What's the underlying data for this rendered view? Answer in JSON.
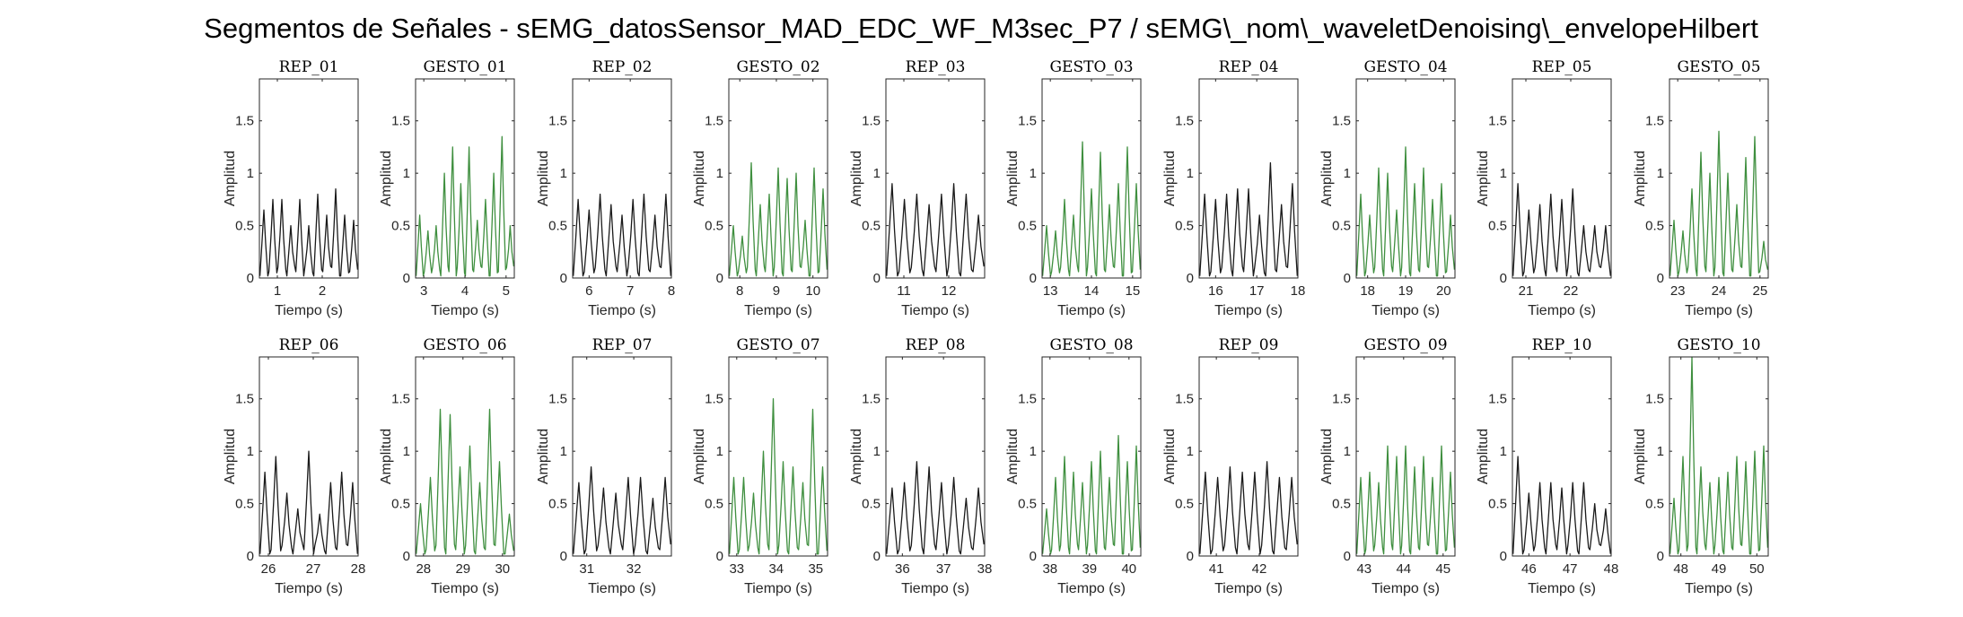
{
  "figure_title": "Segmentos de Señales - sEMG_datosSensor_MAD_EDC_WF_M3sec_P7 / sEMG\\_nom\\_waveletDenoising\\_envelopeHilbert",
  "colors": {
    "rep": "#1a1a1a",
    "gesto": "#3f8f3f",
    "axis": "#262626"
  },
  "chart_data": [
    {
      "type": "line",
      "title": "REP_01",
      "xlabel": "Tiempo (s)",
      "ylabel": "Amplitud",
      "xlim": [
        0.6,
        2.8
      ],
      "ylim": [
        0,
        1.9
      ],
      "xticks": [
        1,
        2
      ],
      "yticks": [
        0,
        0.5,
        1,
        1.5
      ],
      "series": [
        {
          "name": "",
          "color": "#1a1a1a",
          "peaks": [
            0.65,
            0.75,
            0.75,
            0.5,
            0.75,
            0.5,
            0.8,
            0.6,
            0.85,
            0.6,
            0.55
          ]
        }
      ]
    },
    {
      "type": "line",
      "title": "GESTO_01",
      "xlabel": "Tiempo (s)",
      "ylabel": "Amplitud",
      "xlim": [
        2.8,
        5.2
      ],
      "ylim": [
        0,
        1.9
      ],
      "xticks": [
        3,
        4,
        5
      ],
      "yticks": [
        0,
        0.5,
        1,
        1.5
      ],
      "series": [
        {
          "name": "",
          "color": "#3f8f3f",
          "peaks": [
            0.6,
            0.45,
            0.5,
            1.0,
            1.25,
            0.9,
            1.25,
            0.55,
            0.75,
            1.0,
            1.35,
            0.5
          ]
        }
      ]
    },
    {
      "type": "line",
      "title": "REP_02",
      "xlabel": "Tiempo (s)",
      "ylabel": "Amplitud",
      "xlim": [
        5.6,
        8.0
      ],
      "ylim": [
        0,
        1.9
      ],
      "xticks": [
        6,
        7,
        8
      ],
      "yticks": [
        0,
        0.5,
        1,
        1.5
      ],
      "series": [
        {
          "name": "",
          "color": "#1a1a1a",
          "peaks": [
            0.75,
            0.65,
            0.8,
            0.7,
            0.6,
            0.75,
            0.8,
            0.6,
            0.8
          ]
        }
      ]
    },
    {
      "type": "line",
      "title": "GESTO_02",
      "xlabel": "Tiempo (s)",
      "ylabel": "Amplitud",
      "xlim": [
        7.7,
        10.4
      ],
      "ylim": [
        0,
        1.9
      ],
      "xticks": [
        8,
        9,
        10
      ],
      "yticks": [
        0,
        0.5,
        1,
        1.5
      ],
      "series": [
        {
          "name": "",
          "color": "#3f8f3f",
          "peaks": [
            0.5,
            0.4,
            1.1,
            0.7,
            0.8,
            1.05,
            0.95,
            1.0,
            0.55,
            1.05,
            0.85
          ]
        }
      ]
    },
    {
      "type": "line",
      "title": "REP_03",
      "xlabel": "Tiempo (s)",
      "ylabel": "Amplitud",
      "xlim": [
        10.6,
        12.8
      ],
      "ylim": [
        0,
        1.9
      ],
      "xticks": [
        11,
        12
      ],
      "yticks": [
        0,
        0.5,
        1,
        1.5
      ],
      "series": [
        {
          "name": "",
          "color": "#1a1a1a",
          "peaks": [
            0.9,
            0.75,
            0.8,
            0.7,
            0.8,
            0.9,
            0.8,
            0.6
          ]
        }
      ]
    },
    {
      "type": "line",
      "title": "GESTO_03",
      "xlabel": "Tiempo (s)",
      "ylabel": "Amplitud",
      "xlim": [
        12.8,
        15.2
      ],
      "ylim": [
        0,
        1.9
      ],
      "xticks": [
        13,
        14,
        15
      ],
      "yticks": [
        0,
        0.5,
        1,
        1.5
      ],
      "series": [
        {
          "name": "",
          "color": "#3f8f3f",
          "peaks": [
            0.5,
            0.45,
            0.75,
            0.6,
            1.3,
            0.85,
            1.2,
            0.7,
            0.9,
            1.25,
            0.9
          ]
        }
      ]
    },
    {
      "type": "line",
      "title": "REP_04",
      "xlabel": "Tiempo (s)",
      "ylabel": "Amplitud",
      "xlim": [
        15.6,
        18.0
      ],
      "ylim": [
        0,
        1.9
      ],
      "xticks": [
        16,
        17,
        18
      ],
      "yticks": [
        0,
        0.5,
        1,
        1.5
      ],
      "series": [
        {
          "name": "",
          "color": "#1a1a1a",
          "peaks": [
            0.8,
            0.75,
            0.8,
            0.85,
            0.85,
            0.6,
            1.1,
            0.7,
            0.9
          ]
        }
      ]
    },
    {
      "type": "line",
      "title": "GESTO_04",
      "xlabel": "Tiempo (s)",
      "ylabel": "Amplitud",
      "xlim": [
        17.7,
        20.3
      ],
      "ylim": [
        0,
        1.9
      ],
      "xticks": [
        18,
        19,
        20
      ],
      "yticks": [
        0,
        0.5,
        1,
        1.5
      ],
      "series": [
        {
          "name": "",
          "color": "#3f8f3f",
          "peaks": [
            0.8,
            0.6,
            1.05,
            1.0,
            0.65,
            1.25,
            0.9,
            1.05,
            0.75,
            0.9,
            0.6
          ]
        }
      ]
    },
    {
      "type": "line",
      "title": "REP_05",
      "xlabel": "Tiempo (s)",
      "ylabel": "Amplitud",
      "xlim": [
        20.7,
        22.9
      ],
      "ylim": [
        0,
        1.9
      ],
      "xticks": [
        21,
        22
      ],
      "yticks": [
        0,
        0.5,
        1,
        1.5
      ],
      "series": [
        {
          "name": "",
          "color": "#1a1a1a",
          "peaks": [
            0.9,
            0.65,
            0.7,
            0.8,
            0.75,
            0.85,
            0.5,
            0.5,
            0.5
          ]
        }
      ]
    },
    {
      "type": "line",
      "title": "GESTO_05",
      "xlabel": "Tiempo (s)",
      "ylabel": "Amplitud",
      "xlim": [
        22.8,
        25.2
      ],
      "ylim": [
        0,
        1.9
      ],
      "xticks": [
        23,
        24,
        25
      ],
      "yticks": [
        0,
        0.5,
        1,
        1.5
      ],
      "series": [
        {
          "name": "",
          "color": "#3f8f3f",
          "peaks": [
            0.55,
            0.45,
            0.85,
            1.2,
            1.0,
            1.4,
            1.0,
            0.7,
            1.15,
            1.35,
            0.35
          ]
        }
      ]
    },
    {
      "type": "line",
      "title": "REP_06",
      "xlabel": "Tiempo (s)",
      "ylabel": "Amplitud",
      "xlim": [
        25.8,
        28.0
      ],
      "ylim": [
        0,
        1.9
      ],
      "xticks": [
        26,
        27,
        28
      ],
      "yticks": [
        0,
        0.5,
        1,
        1.5
      ],
      "series": [
        {
          "name": "",
          "color": "#1a1a1a",
          "peaks": [
            0.8,
            0.95,
            0.6,
            0.45,
            1.0,
            0.4,
            0.7,
            0.8,
            0.7
          ]
        }
      ]
    },
    {
      "type": "line",
      "title": "GESTO_06",
      "xlabel": "Tiempo (s)",
      "ylabel": "Amplitud",
      "xlim": [
        27.8,
        30.3
      ],
      "ylim": [
        0,
        1.9
      ],
      "xticks": [
        28,
        29,
        30
      ],
      "yticks": [
        0,
        0.5,
        1,
        1.5
      ],
      "series": [
        {
          "name": "",
          "color": "#3f8f3f",
          "peaks": [
            0.5,
            0.75,
            1.4,
            1.35,
            0.85,
            1.05,
            0.7,
            1.4,
            0.9,
            0.4
          ]
        }
      ]
    },
    {
      "type": "line",
      "title": "REP_07",
      "xlabel": "Tiempo (s)",
      "ylabel": "Amplitud",
      "xlim": [
        30.7,
        32.8
      ],
      "ylim": [
        0,
        1.9
      ],
      "xticks": [
        31,
        32
      ],
      "yticks": [
        0,
        0.5,
        1,
        1.5
      ],
      "series": [
        {
          "name": "",
          "color": "#1a1a1a",
          "peaks": [
            0.7,
            0.85,
            0.65,
            0.6,
            0.75,
            0.75,
            0.55,
            0.75
          ]
        }
      ]
    },
    {
      "type": "line",
      "title": "GESTO_07",
      "xlabel": "Tiempo (s)",
      "ylabel": "Amplitud",
      "xlim": [
        32.8,
        35.3
      ],
      "ylim": [
        0,
        1.9
      ],
      "xticks": [
        33,
        34,
        35
      ],
      "yticks": [
        0,
        0.5,
        1,
        1.5
      ],
      "series": [
        {
          "name": "",
          "color": "#3f8f3f",
          "peaks": [
            0.75,
            0.75,
            0.6,
            1.0,
            1.5,
            0.9,
            0.85,
            0.7,
            1.4,
            0.85
          ]
        }
      ]
    },
    {
      "type": "line",
      "title": "REP_08",
      "xlabel": "Tiempo (s)",
      "ylabel": "Amplitud",
      "xlim": [
        35.6,
        38.0
      ],
      "ylim": [
        0,
        1.9
      ],
      "xticks": [
        36,
        37,
        38
      ],
      "yticks": [
        0,
        0.5,
        1,
        1.5
      ],
      "series": [
        {
          "name": "",
          "color": "#1a1a1a",
          "peaks": [
            0.65,
            0.7,
            0.9,
            0.85,
            0.7,
            0.75,
            0.55,
            0.65
          ]
        }
      ]
    },
    {
      "type": "line",
      "title": "GESTO_08",
      "xlabel": "Tiempo (s)",
      "ylabel": "Amplitud",
      "xlim": [
        37.8,
        40.3
      ],
      "ylim": [
        0,
        1.9
      ],
      "xticks": [
        38,
        39,
        40
      ],
      "yticks": [
        0,
        0.5,
        1,
        1.5
      ],
      "series": [
        {
          "name": "",
          "color": "#3f8f3f",
          "peaks": [
            0.45,
            0.75,
            0.95,
            0.8,
            0.7,
            0.9,
            1.0,
            0.75,
            1.15,
            0.9,
            1.05
          ]
        }
      ]
    },
    {
      "type": "line",
      "title": "REP_09",
      "xlabel": "Tiempo (s)",
      "ylabel": "Amplitud",
      "xlim": [
        40.6,
        42.9
      ],
      "ylim": [
        0,
        1.9
      ],
      "xticks": [
        41,
        42
      ],
      "yticks": [
        0,
        0.5,
        1,
        1.5
      ],
      "series": [
        {
          "name": "",
          "color": "#1a1a1a",
          "peaks": [
            0.8,
            0.75,
            0.85,
            0.8,
            0.8,
            0.9,
            0.75,
            0.75
          ]
        }
      ]
    },
    {
      "type": "line",
      "title": "GESTO_09",
      "xlabel": "Tiempo (s)",
      "ylabel": "Amplitud",
      "xlim": [
        42.8,
        45.3
      ],
      "ylim": [
        0,
        1.9
      ],
      "xticks": [
        43,
        44,
        45
      ],
      "yticks": [
        0,
        0.5,
        1,
        1.5
      ],
      "series": [
        {
          "name": "",
          "color": "#3f8f3f",
          "peaks": [
            0.75,
            0.8,
            0.7,
            1.05,
            0.95,
            1.05,
            0.85,
            0.95,
            0.75,
            1.05,
            0.8
          ]
        }
      ]
    },
    {
      "type": "line",
      "title": "REP_10",
      "xlabel": "Tiempo (s)",
      "ylabel": "Amplitud",
      "xlim": [
        45.6,
        48.0
      ],
      "ylim": [
        0,
        1.9
      ],
      "xticks": [
        46,
        47,
        48
      ],
      "yticks": [
        0,
        0.5,
        1,
        1.5
      ],
      "series": [
        {
          "name": "",
          "color": "#1a1a1a",
          "peaks": [
            0.95,
            0.6,
            0.7,
            0.7,
            0.65,
            0.7,
            0.7,
            0.5,
            0.45
          ]
        }
      ]
    },
    {
      "type": "line",
      "title": "GESTO_10",
      "xlabel": "Tiempo (s)",
      "ylabel": "Amplitud",
      "xlim": [
        47.7,
        50.3
      ],
      "ylim": [
        0,
        1.9
      ],
      "xticks": [
        48,
        49,
        50
      ],
      "yticks": [
        0,
        0.5,
        1,
        1.5
      ],
      "series": [
        {
          "name": "",
          "color": "#3f8f3f",
          "peaks": [
            0.55,
            0.95,
            1.9,
            0.85,
            0.7,
            0.75,
            0.8,
            0.95,
            0.9,
            1.0,
            1.05
          ]
        }
      ]
    }
  ]
}
